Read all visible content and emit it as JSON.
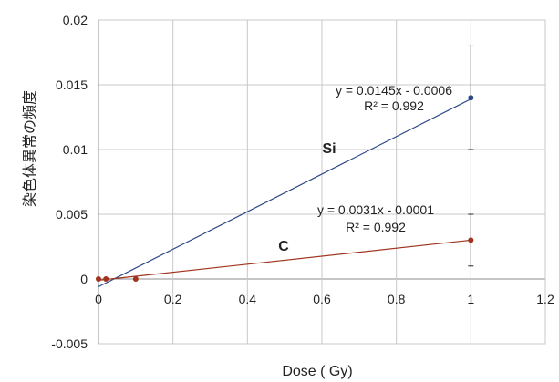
{
  "chart_data": {
    "type": "scatter",
    "title": "",
    "xlabel": "Dose ( Gy)",
    "ylabel": "染色体異常の頻度",
    "xlim": [
      0,
      1.2
    ],
    "ylim": [
      -0.005,
      0.02
    ],
    "x_ticks": [
      0,
      0.2,
      0.4,
      0.6,
      0.8,
      1,
      1.2
    ],
    "y_ticks": [
      -0.005,
      0,
      0.005,
      0.01,
      0.015,
      0.02
    ],
    "x_tick_labels": [
      "0",
      "0.2",
      "0.4",
      "0.6",
      "0.8",
      "1",
      "1.2"
    ],
    "y_tick_labels": [
      "-0.005",
      "0",
      "0.005",
      "0.01",
      "0.015",
      "0.02"
    ],
    "grid": true,
    "series": [
      {
        "name": "Si",
        "color": "#2e4a86",
        "points": [
          {
            "x": 1.0,
            "y": 0.014
          }
        ],
        "error_bars": [
          {
            "x": 1.0,
            "low": 0.01,
            "high": 0.018
          }
        ],
        "trendline": {
          "slope": 0.0145,
          "intercept": -0.0006,
          "x_range": [
            0,
            1.0
          ]
        },
        "equation": "y = 0.0145x - 0.0006",
        "r2": "R² = 0.992"
      },
      {
        "name": "C",
        "color": "#a0341e",
        "points": [
          {
            "x": 0,
            "y": 0
          },
          {
            "x": 0.02,
            "y": 0
          },
          {
            "x": 0.1,
            "y": 0
          },
          {
            "x": 1.0,
            "y": 0.003
          }
        ],
        "error_bars": [
          {
            "x": 1.0,
            "low": 0.001,
            "high": 0.005
          }
        ],
        "trendline": {
          "slope": 0.0031,
          "intercept": -0.0001,
          "x_range": [
            0,
            1.0
          ]
        },
        "equation": "y = 0.0031x - 0.0001",
        "r2": "R² = 0.992"
      }
    ]
  }
}
